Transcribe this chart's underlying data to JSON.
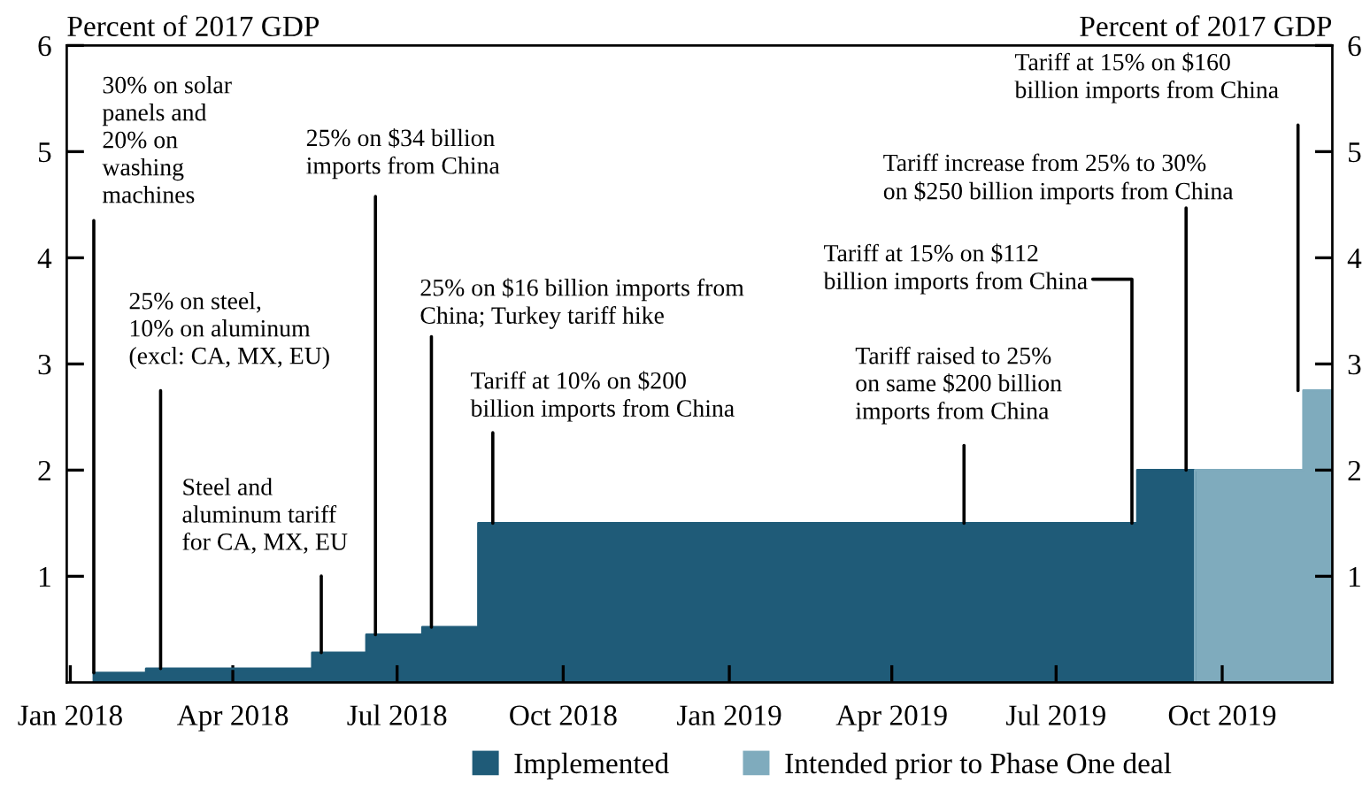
{
  "chart_data": {
    "type": "area",
    "ylabel": "Percent of 2017 GDP",
    "y2label": "Percent of 2017 GDP",
    "series": [
      {
        "name": "Implemented",
        "color": "#1f5b78",
        "x": [
          "2018-01-14",
          "2018-01-14",
          "2018-02-12",
          "2018-02-12",
          "2018-05-15",
          "2018-05-15",
          "2018-06-14",
          "2018-06-14",
          "2018-07-15",
          "2018-07-15",
          "2018-08-15",
          "2018-08-15",
          "2019-08-15",
          "2019-08-15",
          "2019-09-16",
          "2019-09-16"
        ],
        "values": [
          0,
          0.09,
          0.09,
          0.13,
          0.13,
          0.28,
          0.28,
          0.45,
          0.45,
          0.52,
          0.52,
          1.5,
          1.5,
          2.0,
          2.0,
          0
        ]
      },
      {
        "name": "Intended prior to Phase One deal",
        "color": "#7fabbd",
        "x": [
          "2019-09-16",
          "2019-09-16",
          "2019-11-15",
          "2019-11-15",
          "2019-12-01"
        ],
        "values": [
          0,
          2.0,
          2.0,
          2.75,
          2.75
        ]
      }
    ],
    "xlim": [
      "2017-12-30",
      "2019-12-01"
    ],
    "xticks": [
      {
        "value": "2018-01-01",
        "label": "Jan 2018"
      },
      {
        "value": "2018-04-01",
        "label": "Apr 2018"
      },
      {
        "value": "2018-07-01",
        "label": "Jul 2018"
      },
      {
        "value": "2018-10-01",
        "label": "Oct 2018"
      },
      {
        "value": "2019-01-01",
        "label": "Jan 2019"
      },
      {
        "value": "2019-04-01",
        "label": "Apr 2019"
      },
      {
        "value": "2019-07-01",
        "label": "Jul 2019"
      },
      {
        "value": "2019-10-01",
        "label": "Oct 2019"
      }
    ],
    "ylim": [
      0,
      6
    ],
    "yticks": [
      1,
      2,
      3,
      4,
      5,
      6
    ],
    "y2lim": [
      0,
      6
    ],
    "y2ticks": [
      1,
      2,
      3,
      4,
      5,
      6
    ],
    "annotations": [
      {
        "text": "30% on solar\npanels and\n20% on\nwashing\nmachines",
        "x": "2018-01-14",
        "y": 0.09
      },
      {
        "text": "25% on steel,\n10% on aluminum\n(excl: CA, MX, EU)",
        "x": "2018-02-20",
        "y": 0.13
      },
      {
        "text": "Steel and\naluminum tariff\nfor CA, MX, EU",
        "x": "2018-05-20",
        "y": 0.28
      },
      {
        "text": "25% on $34 billion\nimports from China",
        "x": "2018-06-19",
        "y": 0.45
      },
      {
        "text": "25% on $16 billion imports from\nChina; Turkey tariff hike",
        "x": "2018-07-20",
        "y": 0.52
      },
      {
        "text": "Tariff at 10% on $200\nbillion imports from China",
        "x": "2018-08-23",
        "y": 1.5
      },
      {
        "text": "Tariff raised to 25%\non same $200 billion\nimports from China",
        "x": "2019-05-11",
        "y": 1.5
      },
      {
        "text": "Tariff at 15% on $112\nbillion imports from China",
        "x": "2019-08-12",
        "y": 1.5
      },
      {
        "text": "Tariff increase from 25% to 30%\non $250 billion imports from China",
        "x": "2019-09-11",
        "y": 2.0
      },
      {
        "text": "Tariff at 15% on $160\nbillion imports from China",
        "x": "2019-11-12",
        "y": 2.75
      }
    ],
    "grid": false,
    "legend": "bottom"
  }
}
